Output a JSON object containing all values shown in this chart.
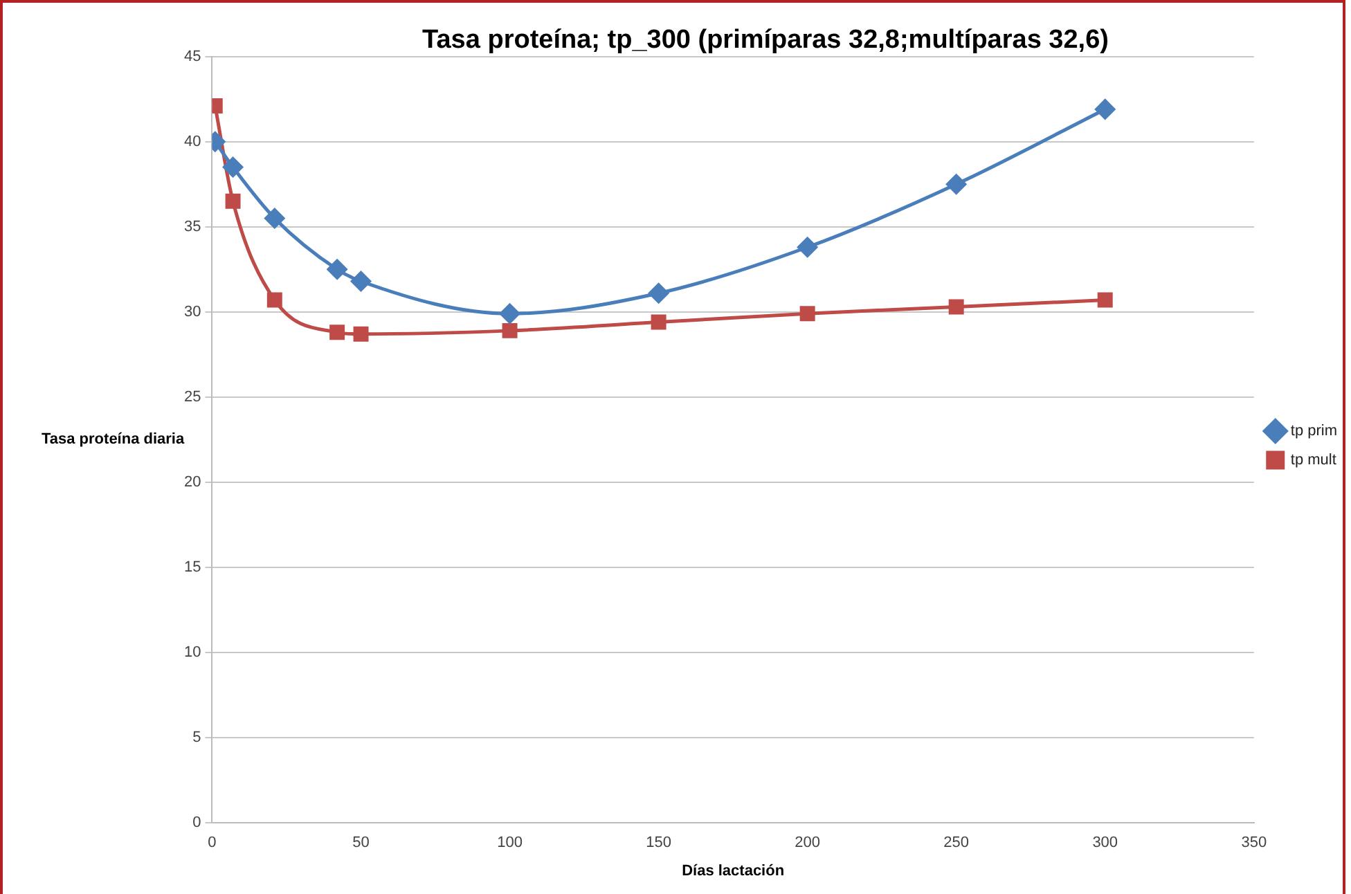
{
  "chart_data": {
    "type": "line",
    "title": "Tasa proteína; tp_300 (primíparas 32,8;multíparas 32,6)",
    "xlabel": "Días lactación",
    "ylabel": "Tasa proteína diaria",
    "xlim": [
      0,
      350
    ],
    "xticks": [
      0,
      50,
      100,
      150,
      200,
      250,
      300,
      350
    ],
    "ylim": [
      0,
      45
    ],
    "yticks": [
      0,
      5,
      10,
      15,
      20,
      25,
      30,
      35,
      40,
      45
    ],
    "grid": "y",
    "legend": "right",
    "line_style": "solid",
    "series": [
      {
        "name": "tp prim",
        "color": "#4a7ebb",
        "marker": "diamond",
        "x": [
          1,
          7,
          21,
          42,
          50,
          100,
          150,
          200,
          250,
          300
        ],
        "values": [
          40.0,
          38.5,
          35.5,
          32.5,
          31.8,
          29.9,
          31.1,
          33.8,
          37.5,
          41.9
        ]
      },
      {
        "name": "tp mult",
        "color": "#be4b48",
        "marker": "square",
        "x": [
          1,
          7,
          21,
          42,
          50,
          100,
          150,
          200,
          250,
          300
        ],
        "values": [
          42.1,
          36.5,
          30.7,
          28.8,
          28.7,
          28.9,
          29.4,
          29.9,
          30.3,
          30.7
        ]
      }
    ]
  }
}
